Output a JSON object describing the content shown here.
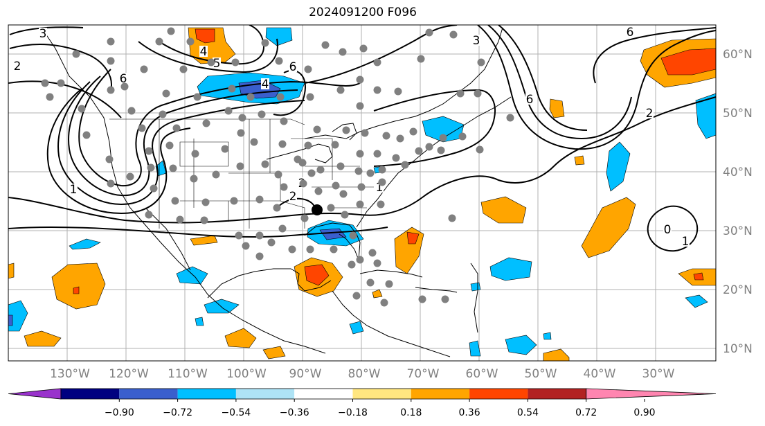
{
  "title": "2024091200 F096",
  "lon_labels": [
    "130°W",
    "120°W",
    "110°W",
    "100°W",
    "90°W",
    "80°W",
    "70°W",
    "60°W",
    "50°W",
    "40°W",
    "30°W"
  ],
  "lat_labels": [
    "60°N",
    "50°N",
    "40°N",
    "30°N",
    "20°N",
    "10°N"
  ],
  "colorbar": {
    "ticks": [
      "−0.90",
      "−0.72",
      "−0.54",
      "−0.36",
      "−0.18",
      "0.18",
      "0.36",
      "0.54",
      "0.72",
      "0.90"
    ],
    "colors": [
      "#9932CC",
      "#000080",
      "#3A5FCD",
      "#00BFFF",
      "#AEE3F5",
      "#FFFFFF",
      "#FFE680",
      "#FFA500",
      "#FF4500",
      "#B22222",
      "#FF85B0"
    ]
  },
  "contour_labels": [
    "3",
    "2",
    "4",
    "5",
    "6",
    "4",
    "6",
    "2",
    "1",
    "6",
    "3",
    "2",
    "6",
    "2",
    "1",
    "0",
    "1"
  ],
  "marker": "black-dot",
  "colors": {
    "contour": "#000000",
    "grid": "#b0b0b0",
    "axis_label": "#808080",
    "station_dot": "#808080"
  }
}
